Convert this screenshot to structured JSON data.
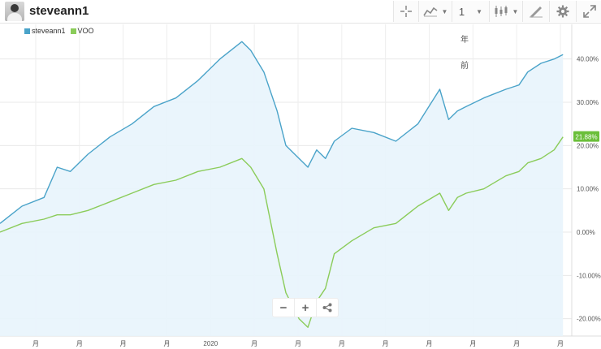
{
  "header": {
    "username": "steveann1",
    "icons": [
      "crosshair-icon",
      "chart-type-icon",
      "candlestick-icon",
      "draw-icon",
      "gear-icon",
      "fullscreen-icon"
    ],
    "interval_value": "1"
  },
  "chart_data": {
    "type": "line",
    "legend_placement": "top-left",
    "grid": true,
    "x_tick_labels": [
      "月",
      "月",
      "月",
      "月",
      "2020",
      "月",
      "月",
      "月",
      "月",
      "月",
      "月",
      "月",
      "月"
    ],
    "x_range": [
      0,
      130
    ],
    "ylim": [
      -24,
      48
    ],
    "y_ticks": [
      40,
      30,
      20,
      10,
      0,
      -10,
      -20
    ],
    "y_tick_labels": [
      "40.00%",
      "30.00%",
      "20.00%",
      "10.00%",
      "0.00%",
      "-10.00%",
      "-20.00%"
    ],
    "last_value_label": "21.88%",
    "annotations": [
      "年",
      "前"
    ],
    "series": [
      {
        "name": "steveann1",
        "color": "#4aa3c9",
        "fill": true,
        "x": [
          0,
          5,
          10,
          13,
          16,
          20,
          25,
          30,
          35,
          40,
          45,
          50,
          55,
          57,
          60,
          63,
          65,
          68,
          70,
          72,
          74,
          76,
          80,
          85,
          90,
          95,
          100,
          102,
          104,
          106,
          110,
          115,
          118,
          120,
          123,
          126,
          128
        ],
        "values": [
          2,
          6,
          8,
          15,
          14,
          18,
          22,
          25,
          29,
          31,
          35,
          40,
          44,
          42,
          37,
          28,
          20,
          17,
          15,
          19,
          17,
          21,
          24,
          23,
          21,
          25,
          33,
          26,
          28,
          29,
          31,
          33,
          34,
          37,
          39,
          40,
          41
        ]
      },
      {
        "name": "VOO",
        "color": "#8bcc5a",
        "fill": false,
        "x": [
          0,
          5,
          10,
          13,
          16,
          20,
          25,
          30,
          35,
          40,
          45,
          50,
          55,
          57,
          60,
          63,
          65,
          68,
          70,
          72,
          74,
          76,
          80,
          85,
          90,
          95,
          100,
          102,
          104,
          106,
          110,
          115,
          118,
          120,
          123,
          126,
          128
        ],
        "values": [
          0,
          2,
          3,
          4,
          4,
          5,
          7,
          9,
          11,
          12,
          14,
          15,
          17,
          15,
          10,
          -5,
          -14,
          -20,
          -22,
          -16,
          -13,
          -5,
          -2,
          1,
          2,
          6,
          9,
          5,
          8,
          9,
          10,
          13,
          14,
          16,
          17,
          19,
          22
        ]
      }
    ]
  }
}
